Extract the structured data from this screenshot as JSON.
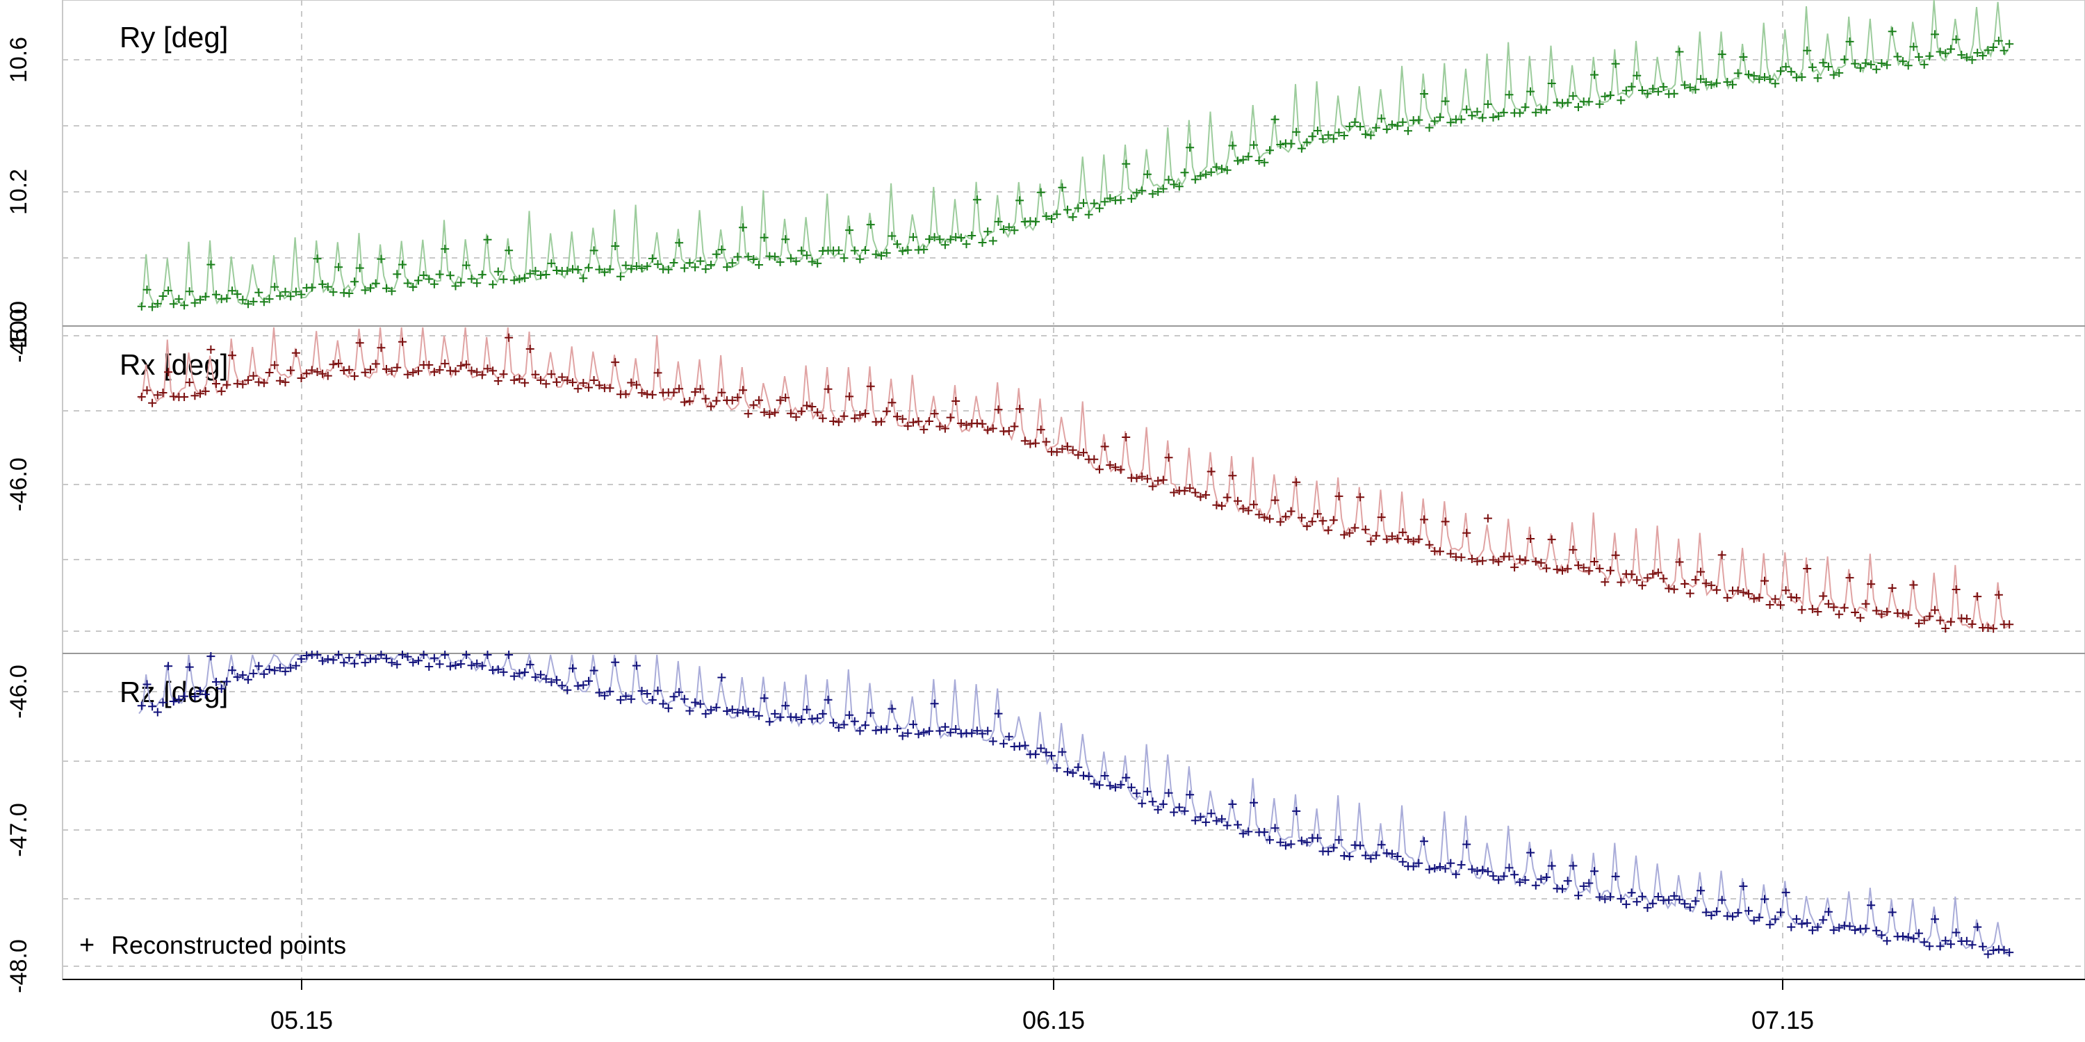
{
  "chart_data": {
    "type": "line",
    "x_ticks": [
      "05.15",
      "06.15",
      "07.15"
    ],
    "legend": {
      "marker": "+",
      "label": "Reconstructed points",
      "placement": "bottom-left"
    },
    "grid": true,
    "panels": [
      {
        "id": "ry",
        "title": "Ry  [deg]",
        "y_ticks": [
          "10.6",
          "10.2",
          "10.0"
        ],
        "ylim": [
          10.0,
          10.8
        ],
        "color_line": "#9ccc9c",
        "color_points": "#1a7f1a",
        "trend": [
          [
            0,
            10.05
          ],
          [
            0.05,
            10.06
          ],
          [
            0.14,
            10.1
          ],
          [
            0.28,
            10.14
          ],
          [
            0.38,
            10.17
          ],
          [
            0.46,
            10.22
          ],
          [
            0.54,
            10.33
          ],
          [
            0.64,
            10.47
          ],
          [
            0.74,
            10.53
          ],
          [
            0.86,
            10.6
          ],
          [
            1.0,
            10.68
          ]
        ],
        "amp_line": 0.14,
        "amp_points": 0.09
      },
      {
        "id": "rx",
        "title": "Rx  [deg]",
        "y_ticks": [
          "-45.0",
          "-46.0"
        ],
        "ylim": [
          -46.05,
          -44.1
        ],
        "color_line": "#e0a3a3",
        "color_points": "#7a0f0f",
        "trend": [
          [
            0,
            -44.54
          ],
          [
            0.09,
            -44.38
          ],
          [
            0.17,
            -44.37
          ],
          [
            0.24,
            -44.45
          ],
          [
            0.32,
            -44.58
          ],
          [
            0.4,
            -44.66
          ],
          [
            0.46,
            -44.72
          ],
          [
            0.52,
            -44.96
          ],
          [
            0.6,
            -45.22
          ],
          [
            0.7,
            -45.45
          ],
          [
            0.8,
            -45.62
          ],
          [
            0.9,
            -45.78
          ],
          [
            1.0,
            -45.92
          ]
        ],
        "amp_line": 0.3,
        "amp_points": 0.22
      },
      {
        "id": "rz",
        "title": "Rz  [deg]",
        "y_ticks": [
          "-46.0",
          "-47.0",
          "-48.0"
        ],
        "ylim": [
          -48.05,
          -46.0
        ],
        "color_line": "#a9acd9",
        "color_points": "#10107a",
        "trend": [
          [
            0,
            -46.36
          ],
          [
            0.09,
            -46.02
          ],
          [
            0.17,
            -46.05
          ],
          [
            0.24,
            -46.22
          ],
          [
            0.32,
            -46.38
          ],
          [
            0.4,
            -46.47
          ],
          [
            0.46,
            -46.52
          ],
          [
            0.52,
            -46.85
          ],
          [
            0.6,
            -47.15
          ],
          [
            0.7,
            -47.35
          ],
          [
            0.8,
            -47.55
          ],
          [
            0.9,
            -47.72
          ],
          [
            1.0,
            -47.88
          ]
        ],
        "amp_line": 0.3,
        "amp_points": 0.22
      }
    ]
  }
}
